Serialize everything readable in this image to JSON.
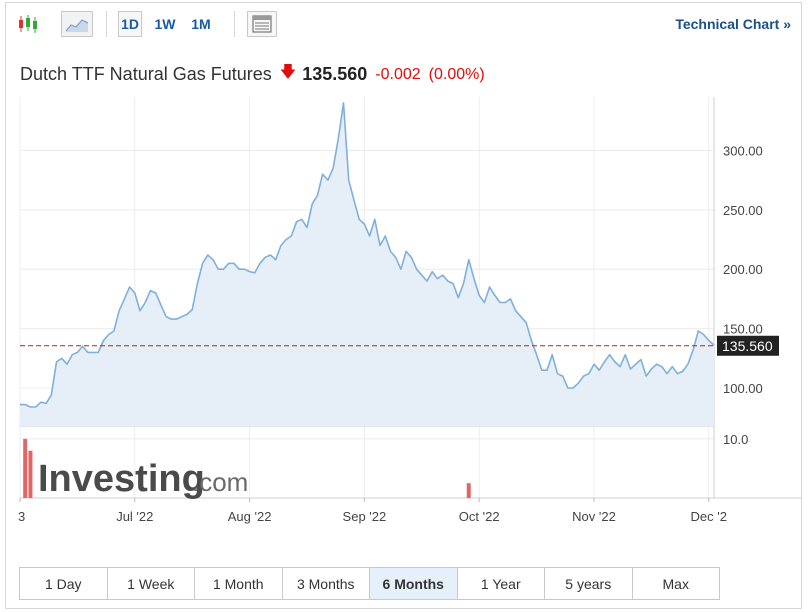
{
  "toolbar": {
    "timeframes": [
      "1D",
      "1W",
      "1M"
    ],
    "technical_chart_label": "Technical Chart »"
  },
  "header": {
    "title": "Dutch TTF Natural Gas Futures",
    "direction_icon": "down-arrow-icon",
    "price": "135.560",
    "change": "-0.002",
    "change_pct": "(0.00%)"
  },
  "colors": {
    "line": "#7fb0dc",
    "area": "#e6eef7",
    "negative": "#e10c0c",
    "price_tag_bg": "#222222",
    "volume": "#e06666",
    "link": "#1a5aa0"
  },
  "chart_data": {
    "type": "area",
    "x_tick_labels": [
      "3",
      "Jul '22",
      "Aug '22",
      "Sep '22",
      "Oct '22",
      "Nov '22",
      "Dec '2"
    ],
    "y_tick_labels": [
      "100.00",
      "150.00",
      "200.00",
      "250.00",
      "300.00"
    ],
    "ylim": [
      68,
      345
    ],
    "grid": true,
    "current_price_label": "135.560",
    "values": [
      86,
      86,
      84,
      84,
      88,
      87,
      94,
      122,
      125,
      120,
      128,
      130,
      135,
      130,
      130,
      130,
      140,
      145,
      148,
      165,
      175,
      185,
      180,
      165,
      172,
      182,
      180,
      170,
      160,
      158,
      158,
      160,
      162,
      166,
      188,
      205,
      212,
      208,
      200,
      200,
      205,
      205,
      200,
      200,
      198,
      197,
      205,
      210,
      212,
      208,
      220,
      225,
      228,
      240,
      242,
      235,
      255,
      262,
      280,
      275,
      285,
      310,
      340,
      275,
      258,
      242,
      238,
      228,
      242,
      220,
      228,
      215,
      210,
      200,
      215,
      210,
      200,
      195,
      190,
      198,
      192,
      195,
      190,
      188,
      176,
      188,
      208,
      192,
      178,
      172,
      185,
      178,
      172,
      172,
      175,
      165,
      160,
      155,
      140,
      128,
      115,
      115,
      128,
      112,
      110,
      100,
      100,
      104,
      110,
      112,
      120,
      115,
      122,
      128,
      122,
      118,
      128,
      116,
      120,
      124,
      110,
      116,
      120,
      118,
      112,
      118,
      112,
      114,
      120,
      132,
      148,
      145,
      140,
      136
    ],
    "volume_label": "10.0",
    "volume_bars": [
      {
        "index": 1,
        "value": 10
      },
      {
        "index": 2,
        "value": 8
      },
      {
        "index": 86,
        "value": 2.5
      }
    ]
  },
  "watermark": {
    "brand": "Investing",
    "suffix": ".com"
  },
  "ranges": {
    "items": [
      "1 Day",
      "1 Week",
      "1 Month",
      "3 Months",
      "6 Months",
      "1 Year",
      "5 years",
      "Max"
    ],
    "active": "6 Months"
  }
}
